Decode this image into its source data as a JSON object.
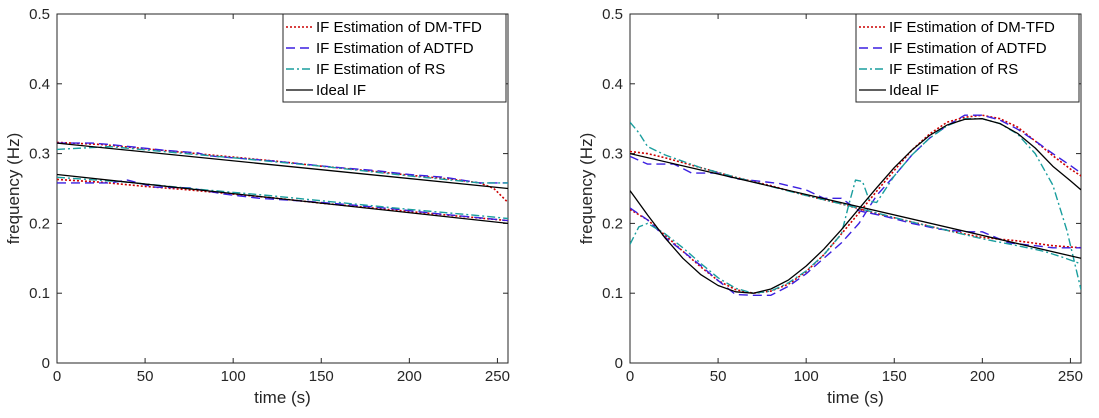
{
  "figure": {
    "legend_entries": [
      {
        "label": "IF Estimation of DM-TFD",
        "color": "#cc0000",
        "dash": "2,2",
        "width": 1.6
      },
      {
        "label": "IF Estimation of ADTFD",
        "color": "#3b1fe0",
        "dash": "9,5",
        "width": 1.4
      },
      {
        "label": "IF Estimation of RS",
        "color": "#1a9e9e",
        "dash": "8,3,2,3",
        "width": 1.4
      },
      {
        "label": "Ideal IF",
        "color": "#000000",
        "dash": "",
        "width": 1.3
      }
    ]
  },
  "chart_data": [
    {
      "type": "line",
      "xlabel": "time (s)",
      "ylabel": "frequency (Hz)",
      "xlim": [
        0,
        256
      ],
      "ylim": [
        0,
        0.5
      ],
      "xticks": [
        "0",
        "50",
        "100",
        "150",
        "200",
        "250"
      ],
      "yticks": [
        "0",
        "0.1",
        "0.2",
        "0.3",
        "0.4",
        "0.5"
      ],
      "legend": "top-right",
      "grid": false,
      "series": [
        {
          "name": "IF Estimation of DM-TFD",
          "segments": [
            {
              "x": [
                0,
                25,
                50,
                75,
                100,
                125,
                150,
                175,
                200,
                225,
                240,
                248,
                256
              ],
              "y": [
                0.316,
                0.313,
                0.307,
                0.301,
                0.295,
                0.289,
                0.282,
                0.276,
                0.269,
                0.263,
                0.258,
                0.25,
                0.23
              ]
            },
            {
              "x": [
                0,
                25,
                50,
                75,
                100,
                125,
                150,
                175,
                200,
                225,
                256
              ],
              "y": [
                0.263,
                0.259,
                0.253,
                0.248,
                0.242,
                0.236,
                0.229,
                0.223,
                0.217,
                0.211,
                0.204
              ]
            }
          ]
        },
        {
          "name": "IF Estimation of ADTFD",
          "segments": [
            {
              "x": [
                0,
                20,
                30,
                45,
                60,
                80,
                85,
                100,
                120,
                140,
                160,
                180,
                200,
                220,
                240,
                256
              ],
              "y": [
                0.315,
                0.315,
                0.313,
                0.309,
                0.305,
                0.301,
                0.297,
                0.294,
                0.29,
                0.285,
                0.28,
                0.276,
                0.27,
                0.266,
                0.258,
                0.258
              ]
            },
            {
              "x": [
                0,
                30,
                40,
                55,
                75,
                95,
                115,
                140,
                165,
                190,
                215,
                240,
                256
              ],
              "y": [
                0.258,
                0.258,
                0.262,
                0.252,
                0.251,
                0.242,
                0.236,
                0.232,
                0.227,
                0.221,
                0.214,
                0.208,
                0.204
              ]
            }
          ]
        },
        {
          "name": "IF Estimation of RS",
          "segments": [
            {
              "x": [
                0,
                15,
                30,
                60,
                100,
                150,
                200,
                240,
                256
              ],
              "y": [
                0.306,
                0.308,
                0.31,
                0.303,
                0.294,
                0.282,
                0.268,
                0.258,
                0.258
              ]
            },
            {
              "x": [
                0,
                40,
                80,
                120,
                160,
                200,
                240,
                256
              ],
              "y": [
                0.266,
                0.259,
                0.249,
                0.24,
                0.23,
                0.22,
                0.211,
                0.207
              ]
            }
          ]
        },
        {
          "name": "Ideal IF",
          "segments": [
            {
              "x": [
                0,
                256
              ],
              "y": [
                0.315,
                0.25
              ]
            },
            {
              "x": [
                0,
                256
              ],
              "y": [
                0.27,
                0.2
              ]
            }
          ]
        }
      ]
    },
    {
      "type": "line",
      "xlabel": "time (s)",
      "ylabel": "frequency (Hz)",
      "xlim": [
        0,
        256
      ],
      "ylim": [
        0,
        0.5
      ],
      "xticks": [
        "0",
        "50",
        "100",
        "150",
        "200",
        "250"
      ],
      "yticks": [
        "0",
        "0.1",
        "0.2",
        "0.3",
        "0.4",
        "0.5"
      ],
      "legend": "top-right",
      "grid": false,
      "series": [
        {
          "name": "IF Estimation of DM-TFD",
          "segments": [
            {
              "x": [
                0,
                10,
                20,
                40,
                60,
                80,
                100,
                120,
                140,
                160,
                180,
                200,
                220,
                240,
                256
              ],
              "y": [
                0.303,
                0.3,
                0.294,
                0.28,
                0.266,
                0.254,
                0.24,
                0.228,
                0.214,
                0.202,
                0.19,
                0.18,
                0.175,
                0.168,
                0.165
              ]
            },
            {
              "x": [
                0,
                10,
                20,
                30,
                40,
                50,
                60,
                70,
                80,
                90,
                100,
                110,
                120,
                130,
                140,
                150,
                160,
                170,
                180,
                190,
                200,
                210,
                220,
                230,
                240,
                250,
                256
              ],
              "y": [
                0.22,
                0.205,
                0.183,
                0.16,
                0.138,
                0.118,
                0.105,
                0.1,
                0.103,
                0.113,
                0.131,
                0.155,
                0.185,
                0.215,
                0.246,
                0.276,
                0.305,
                0.328,
                0.345,
                0.352,
                0.355,
                0.35,
                0.338,
                0.318,
                0.297,
                0.278,
                0.268
              ]
            }
          ]
        },
        {
          "name": "IF Estimation of ADTFD",
          "segments": [
            {
              "x": [
                0,
                10,
                25,
                35,
                50,
                60,
                75,
                85,
                100,
                110,
                120,
                130,
                145,
                160,
                175,
                190,
                200,
                215,
                230,
                240,
                256
              ],
              "y": [
                0.296,
                0.285,
                0.285,
                0.272,
                0.272,
                0.264,
                0.26,
                0.257,
                0.248,
                0.236,
                0.236,
                0.218,
                0.21,
                0.2,
                0.192,
                0.188,
                0.188,
                0.172,
                0.168,
                0.165,
                0.165
              ]
            },
            {
              "x": [
                0,
                10,
                20,
                30,
                40,
                50,
                60,
                70,
                80,
                90,
                100,
                110,
                120,
                130,
                135,
                140,
                150,
                160,
                170,
                180,
                190,
                200,
                210,
                220,
                230,
                240,
                250,
                256
              ],
              "y": [
                0.222,
                0.205,
                0.18,
                0.16,
                0.14,
                0.118,
                0.098,
                0.097,
                0.097,
                0.11,
                0.128,
                0.15,
                0.172,
                0.2,
                0.22,
                0.24,
                0.268,
                0.298,
                0.322,
                0.34,
                0.355,
                0.355,
                0.348,
                0.335,
                0.318,
                0.3,
                0.283,
                0.272
              ]
            }
          ]
        },
        {
          "name": "IF Estimation of RS",
          "segments": [
            {
              "x": [
                0,
                5,
                10,
                20,
                40,
                60,
                80,
                100,
                120,
                140,
                160,
                180,
                200,
                220,
                235,
                245,
                256
              ],
              "y": [
                0.345,
                0.33,
                0.31,
                0.298,
                0.28,
                0.266,
                0.253,
                0.24,
                0.228,
                0.215,
                0.202,
                0.19,
                0.178,
                0.168,
                0.16,
                0.152,
                0.142
              ]
            },
            {
              "x": [
                0,
                5,
                10,
                20,
                30,
                40,
                50,
                60,
                70,
                80,
                90,
                100,
                110,
                120,
                124,
                128,
                132,
                136,
                140,
                150,
                160,
                170,
                180,
                190,
                200,
                210,
                220,
                230,
                240,
                248,
                256
              ],
              "y": [
                0.17,
                0.195,
                0.2,
                0.185,
                0.165,
                0.143,
                0.122,
                0.107,
                0.1,
                0.103,
                0.115,
                0.132,
                0.155,
                0.185,
                0.225,
                0.262,
                0.26,
                0.232,
                0.23,
                0.268,
                0.298,
                0.322,
                0.34,
                0.35,
                0.35,
                0.343,
                0.328,
                0.3,
                0.255,
                0.19,
                0.105
              ]
            }
          ]
        },
        {
          "name": "Ideal IF",
          "segments": [
            {
              "x": [
                0,
                256
              ],
              "y": [
                0.3,
                0.15
              ]
            },
            {
              "x": [
                0,
                10,
                20,
                30,
                40,
                50,
                60,
                70,
                80,
                90,
                100,
                110,
                120,
                130,
                140,
                150,
                160,
                170,
                180,
                190,
                200,
                210,
                220,
                230,
                240,
                250,
                256
              ],
              "y": [
                0.247,
                0.212,
                0.179,
                0.15,
                0.127,
                0.111,
                0.102,
                0.1,
                0.106,
                0.119,
                0.139,
                0.163,
                0.191,
                0.221,
                0.251,
                0.28,
                0.305,
                0.326,
                0.341,
                0.349,
                0.35,
                0.343,
                0.329,
                0.308,
                0.282,
                0.261,
                0.248
              ]
            }
          ]
        }
      ]
    }
  ]
}
